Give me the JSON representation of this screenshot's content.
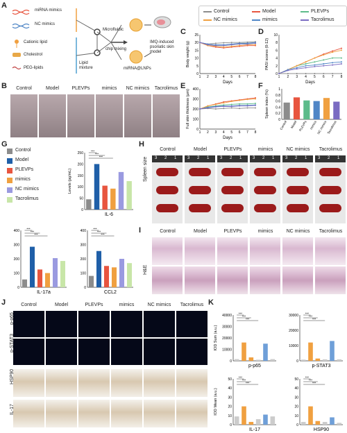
{
  "panels": {
    "A": "A",
    "B": "B",
    "C": "C",
    "D": "D",
    "E": "E",
    "F": "F",
    "G": "G",
    "H": "H",
    "I": "I",
    "J": "J",
    "K": "K"
  },
  "schematic": {
    "mirna_mimics": "miRNA mimics",
    "nc_mimics": "NC mimics",
    "cationic_lipid": "Cationic lipid",
    "cholestrol": "Cholestrol",
    "peg_lipids": "PEG-lipids",
    "lipid": "Lipid",
    "mixture": "mixture",
    "microfluidic": "Microfluidic",
    "chip_mixing": "chip mixing",
    "lnps": "miRNA@LNPs",
    "imq1": "IMQ-induced",
    "imq2": "psoriatic skin",
    "imq3": "model"
  },
  "legend": [
    {
      "name": "Control",
      "color": "#8c8c8c"
    },
    {
      "name": "Model",
      "color": "#e8553f"
    },
    {
      "name": "PLEVPs",
      "color": "#5dbb8a"
    },
    {
      "name": "NC mimics",
      "color": "#f0a040"
    },
    {
      "name": "mimics",
      "color": "#4f86c6"
    },
    {
      "name": "Tacrolimus",
      "color": "#7a6bc2"
    }
  ],
  "groups": [
    "Control",
    "Model",
    "PLEVPs",
    "mimics",
    "NC mimics",
    "Tacrolimus"
  ],
  "groups_g_legend": [
    "Control",
    "Model",
    "PLEVPs",
    "mimics",
    "NC mimics",
    "Tacrolimus"
  ],
  "colors_g": [
    "#8c8c8c",
    "#1f5fa8",
    "#e8553f",
    "#f0a040",
    "#9a9ae0",
    "#c8e6a8"
  ],
  "chart_data": [
    {
      "type": "line",
      "id": "C",
      "ylabel": "Body weight (g)",
      "xlabel": "Days",
      "x": [
        1,
        2,
        3,
        4,
        5,
        6,
        7,
        8
      ],
      "ylim": [
        0,
        25
      ],
      "yticks": [
        0,
        5,
        10,
        15,
        20,
        25
      ],
      "series": [
        {
          "name": "Control",
          "values": [
            20,
            19,
            19.5,
            19.8,
            20,
            20,
            20.2,
            20.5
          ]
        },
        {
          "name": "Model",
          "values": [
            20,
            18,
            17,
            16.5,
            17,
            17.5,
            18,
            18
          ]
        },
        {
          "name": "PLEVPs",
          "values": [
            20,
            18.5,
            18,
            18,
            18.5,
            19,
            19.5,
            19.5
          ]
        },
        {
          "name": "NC mimics",
          "values": [
            20,
            18,
            17.5,
            17,
            17.5,
            18,
            18.5,
            18.5
          ]
        },
        {
          "name": "mimics",
          "values": [
            20,
            19,
            18.5,
            18.5,
            19,
            19.5,
            19.5,
            20
          ]
        },
        {
          "name": "Tacrolimus",
          "values": [
            20,
            18.5,
            18,
            18,
            18.5,
            19,
            19,
            19.5
          ]
        }
      ]
    },
    {
      "type": "line",
      "id": "D",
      "ylabel": "PASI scores (0-12)",
      "xlabel": "Days",
      "x": [
        1,
        2,
        3,
        4,
        5,
        6,
        7,
        8
      ],
      "ylim": [
        0,
        10
      ],
      "yticks": [
        0,
        2,
        4,
        6,
        8,
        10
      ],
      "series": [
        {
          "name": "Control",
          "values": [
            0,
            0,
            0,
            0,
            0,
            0,
            0,
            0
          ]
        },
        {
          "name": "Model",
          "values": [
            0,
            1,
            2,
            3,
            4,
            5,
            5.8,
            6.5
          ]
        },
        {
          "name": "PLEVPs",
          "values": [
            0,
            1,
            2,
            2.5,
            3,
            3.5,
            4,
            4
          ]
        },
        {
          "name": "NC mimics",
          "values": [
            0,
            1,
            2,
            3,
            4,
            4.8,
            5.5,
            6
          ]
        },
        {
          "name": "mimics",
          "values": [
            0,
            1,
            1.5,
            2,
            2.2,
            2.5,
            2.8,
            3
          ]
        },
        {
          "name": "Tacrolimus",
          "values": [
            0,
            0.8,
            1.2,
            1.5,
            1.8,
            2,
            2.2,
            2.5
          ]
        }
      ]
    },
    {
      "type": "line",
      "id": "E",
      "ylabel": "Full skin thickness (μm)",
      "xlabel": "Days",
      "x": [
        1,
        2,
        3,
        4,
        5,
        6,
        7,
        8
      ],
      "ylim": [
        0,
        400
      ],
      "yticks": [
        0,
        100,
        200,
        300,
        400
      ],
      "series": [
        {
          "name": "Control",
          "values": [
            200,
            205,
            200,
            205,
            210,
            205,
            210,
            210
          ]
        },
        {
          "name": "Model",
          "values": [
            200,
            230,
            250,
            270,
            280,
            290,
            300,
            310
          ]
        },
        {
          "name": "PLEVPs",
          "values": [
            200,
            220,
            230,
            240,
            245,
            250,
            250,
            255
          ]
        },
        {
          "name": "NC mimics",
          "values": [
            200,
            230,
            245,
            260,
            275,
            285,
            295,
            300
          ]
        },
        {
          "name": "mimics",
          "values": [
            200,
            215,
            225,
            230,
            230,
            235,
            235,
            240
          ]
        },
        {
          "name": "Tacrolimus",
          "values": [
            200,
            210,
            220,
            225,
            225,
            230,
            230,
            235
          ]
        }
      ]
    },
    {
      "type": "bar",
      "id": "F",
      "ylabel": "Spleen index (%)",
      "categories": [
        "Control",
        "Model",
        "PLEVPs",
        "mimics",
        "NC mimics",
        "Tacrolimus"
      ],
      "values": [
        0.55,
        0.72,
        0.62,
        0.6,
        0.7,
        0.58
      ],
      "ylim": [
        0,
        1.0
      ],
      "yticks": [
        0,
        0.2,
        0.4,
        0.6,
        0.8,
        1.0
      ]
    },
    {
      "type": "bar",
      "id": "G1",
      "title": "IL-6",
      "ylabel": "Levels (pg/mL)",
      "categories": [
        "Control",
        "Model",
        "PLEVPs",
        "mimics",
        "NC mimics",
        "Tacrolimus"
      ],
      "values": [
        45,
        200,
        105,
        92,
        165,
        125
      ],
      "ylim": [
        0,
        250
      ],
      "yticks": [
        0,
        50,
        100,
        150,
        200,
        250
      ]
    },
    {
      "type": "bar",
      "id": "G2",
      "title": "IL-17a",
      "categories": [
        "Control",
        "Model",
        "PLEVPs",
        "mimics",
        "NC mimics",
        "Tacrolimus"
      ],
      "values": [
        55,
        285,
        125,
        100,
        205,
        185
      ],
      "ylim": [
        0,
        400
      ],
      "yticks": [
        0,
        100,
        200,
        300,
        400
      ]
    },
    {
      "type": "bar",
      "id": "G3",
      "title": "CCL2",
      "categories": [
        "Control",
        "Model",
        "PLEVPs",
        "mimics",
        "NC mimics",
        "Tacrolimus"
      ],
      "values": [
        80,
        255,
        150,
        140,
        200,
        170
      ],
      "ylim": [
        0,
        400
      ],
      "yticks": [
        0,
        100,
        200,
        300,
        400
      ]
    },
    {
      "type": "bar",
      "id": "K1",
      "title": "p-p65",
      "ylabel": "IOD Sum (a.u.)",
      "categories": [
        "Control",
        "Model",
        "PLEVPs",
        "mimics",
        "NC mimics",
        "Tacrolimus"
      ],
      "values": [
        1500,
        16000,
        3000,
        1000,
        15000,
        1500
      ],
      "ylim": [
        0,
        40000
      ],
      "yticks": [
        0,
        10000,
        20000,
        30000,
        40000
      ]
    },
    {
      "type": "bar",
      "id": "K2",
      "title": "p-STAT3",
      "categories": [
        "Control",
        "Model",
        "PLEVPs",
        "mimics",
        "NC mimics",
        "Tacrolimus"
      ],
      "values": [
        800,
        12000,
        1500,
        1000,
        13000,
        1000
      ],
      "ylim": [
        0,
        30000
      ],
      "yticks": [
        0,
        10000,
        20000,
        30000
      ]
    },
    {
      "type": "bar",
      "id": "K3",
      "title": "IL-17",
      "ylabel": "IOD Mean (a.u.)",
      "categories": [
        "Control",
        "Model",
        "PLEVPs",
        "mimics",
        "NC mimics",
        "Tacrolimus"
      ],
      "values": [
        9,
        20,
        3,
        6,
        11,
        9
      ],
      "ylim": [
        0,
        50
      ],
      "yticks": [
        0,
        10,
        20,
        30,
        40,
        50
      ]
    },
    {
      "type": "bar",
      "id": "K4",
      "title": "HSP90",
      "categories": [
        "Control",
        "Model",
        "PLEVPs",
        "mimics",
        "NC mimics",
        "Tacrolimus"
      ],
      "values": [
        3,
        20,
        4,
        3,
        8,
        2
      ],
      "ylim": [
        0,
        50
      ],
      "yticks": [
        0,
        10,
        20,
        30,
        40,
        50
      ]
    }
  ],
  "h": {
    "side": "Spleen size",
    "ruler": [
      "3",
      "2",
      "1"
    ]
  },
  "i": {
    "side": "H&E"
  },
  "j": {
    "rows": [
      "p-p65",
      "p-STAT3",
      "HSP90",
      "IL-17"
    ]
  },
  "sig": "***"
}
